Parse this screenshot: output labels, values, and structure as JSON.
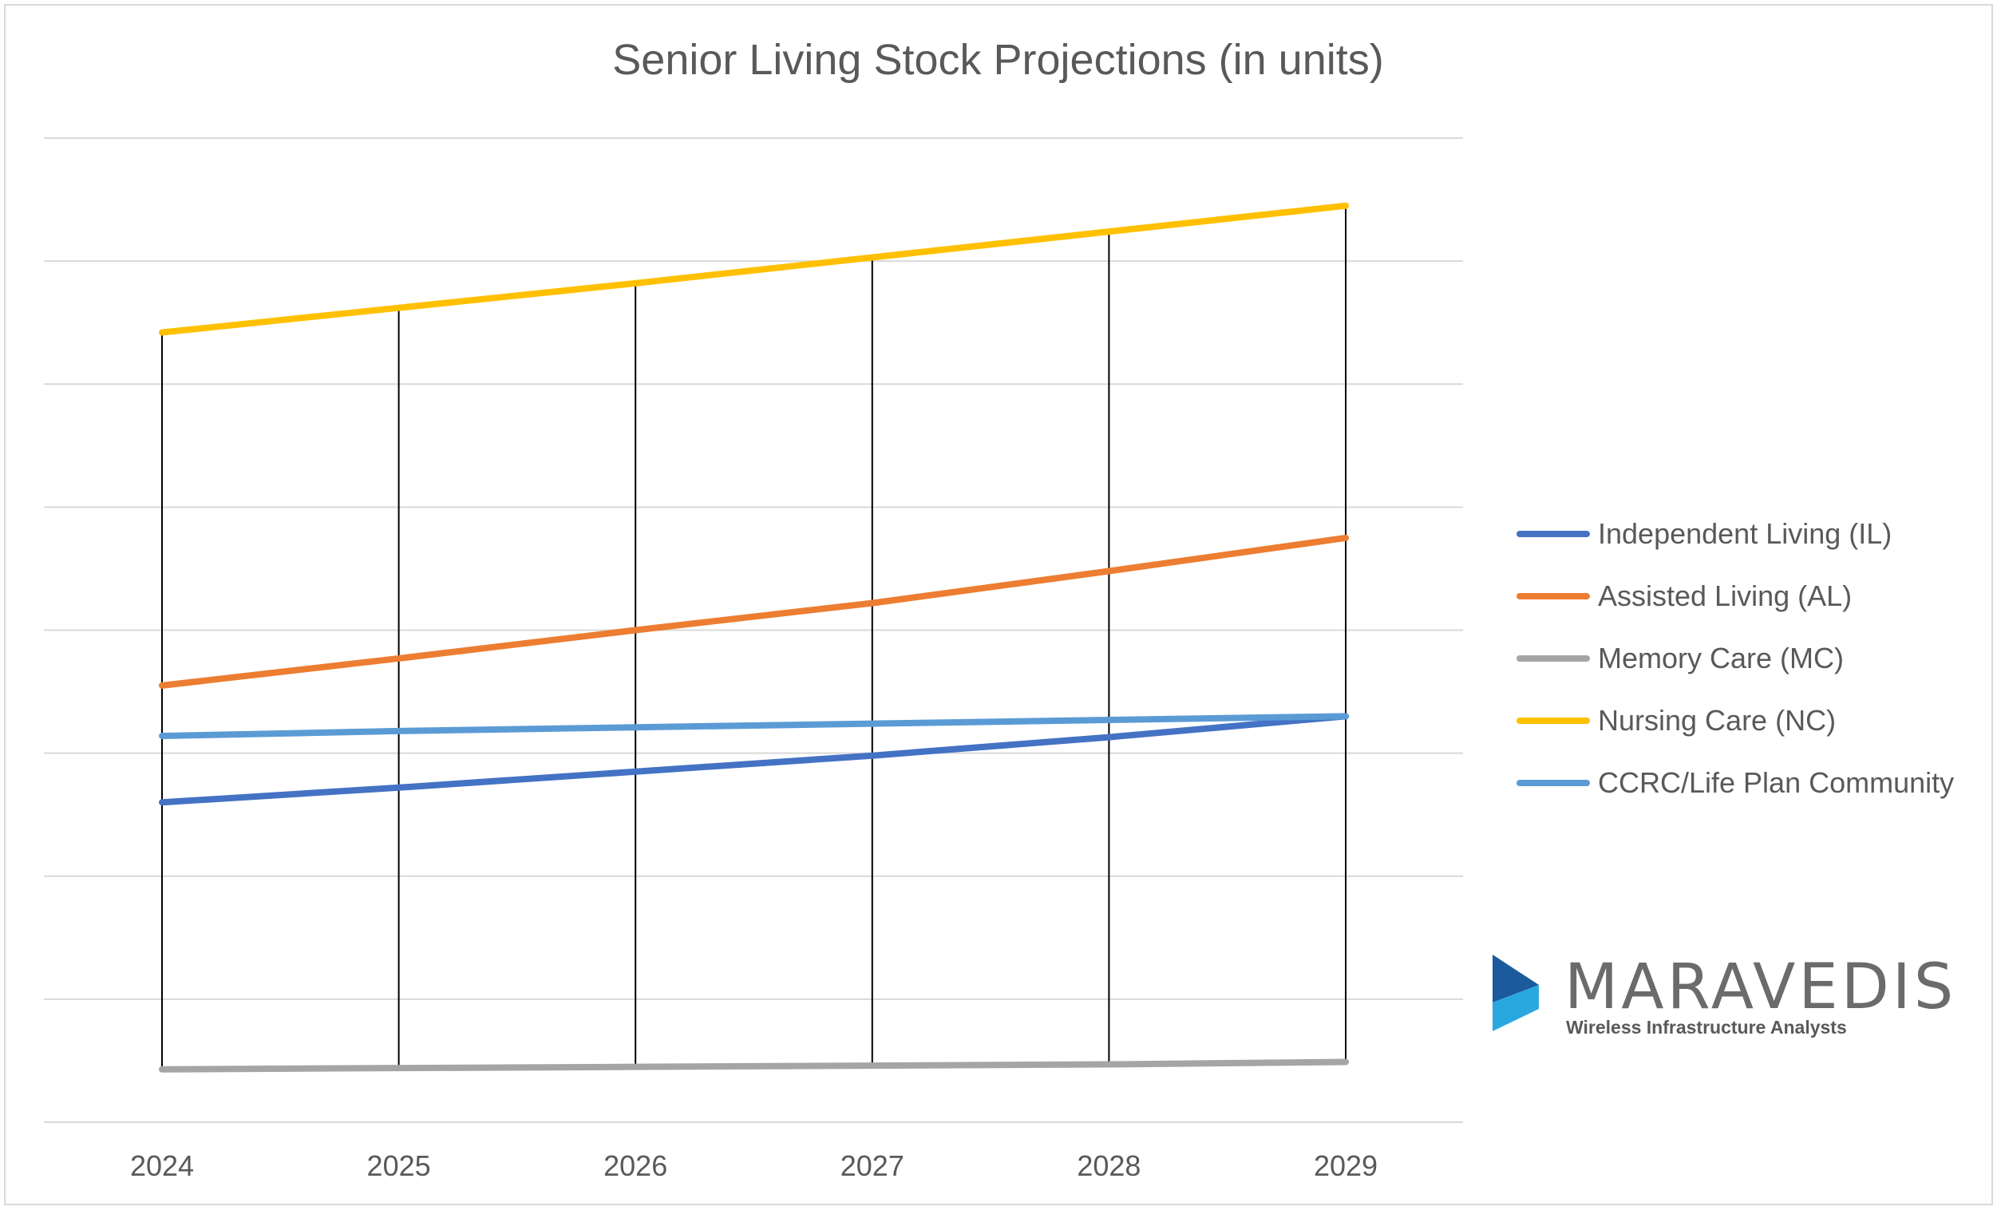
{
  "chart_data": {
    "type": "line",
    "title": "Senior Living Stock Projections (in units)",
    "xlabel": "",
    "ylabel": "",
    "categories": [
      "2024",
      "2025",
      "2026",
      "2027",
      "2028",
      "2029"
    ],
    "ylim": [
      0,
      800
    ],
    "y_gridlines": [
      0,
      100,
      200,
      300,
      400,
      500,
      600,
      700,
      800
    ],
    "y_tick_labels_shown": false,
    "grid": true,
    "legend_position": "right",
    "drop_lines": true,
    "series": [
      {
        "name": "Independent Living (IL)",
        "color": "#4472c4",
        "values": [
          260,
          272,
          285,
          298,
          313,
          330
        ]
      },
      {
        "name": "Assisted Living (AL)",
        "color": "#ed7d31",
        "values": [
          355,
          377,
          400,
          422,
          448,
          475
        ]
      },
      {
        "name": "Memory Care (MC)",
        "color": "#a5a5a5",
        "values": [
          43,
          44,
          45,
          46,
          47,
          49
        ]
      },
      {
        "name": "Nursing Care (NC)",
        "color": "#ffc000",
        "values": [
          642,
          662,
          682,
          703,
          724,
          745
        ]
      },
      {
        "name": "CCRC/Life Plan Community",
        "color": "#5b9bd5",
        "values": [
          314,
          318,
          321,
          324,
          327,
          330
        ]
      }
    ]
  },
  "logo": {
    "name": "MARAVEDIS",
    "tagline": "Wireless Infrastructure Analysts",
    "colors": {
      "dark": "#1b5a9c",
      "light": "#29a8e0"
    }
  }
}
